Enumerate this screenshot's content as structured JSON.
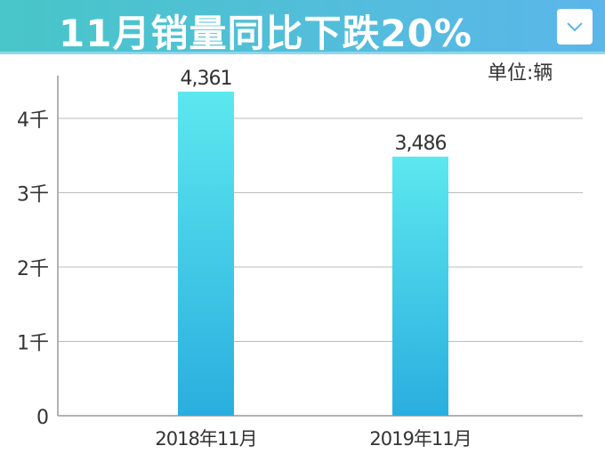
{
  "header": {
    "title": "11月销量同比下跌20%",
    "dropdown_icon": "chevron-down-icon"
  },
  "chart_data": {
    "type": "bar",
    "title": "11月销量同比下跌20%",
    "unit_label": "单位:辆",
    "categories": [
      "2018年11月",
      "2019年11月"
    ],
    "values": [
      4361,
      3486
    ],
    "data_labels": [
      "4,361",
      "3,486"
    ],
    "yticks": [
      0,
      1000,
      2000,
      3000,
      4000
    ],
    "ytick_labels": [
      "0",
      "1千",
      "2千",
      "3千",
      "4千"
    ],
    "ylim": [
      0,
      4400
    ],
    "grid": true,
    "colors": {
      "bar_top": "#5ce8ef",
      "bar_bottom": "#2aaedf",
      "grid": "#bbbbbb"
    }
  }
}
